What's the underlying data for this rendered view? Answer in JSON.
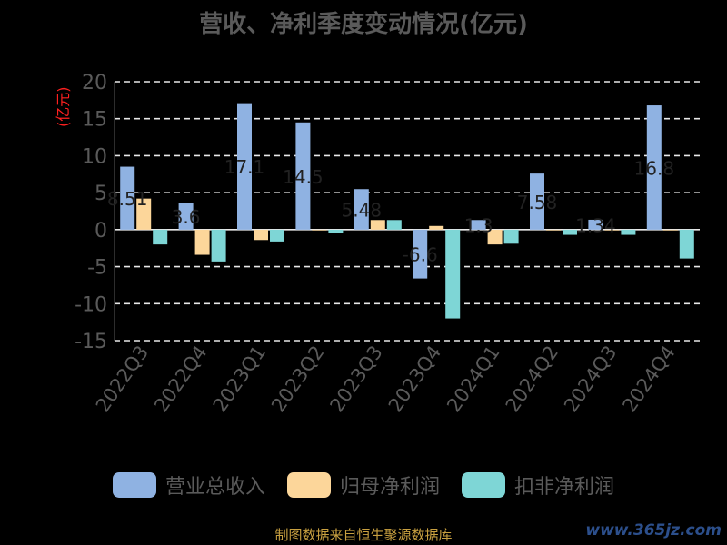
{
  "chart_data": {
    "type": "bar",
    "title": "营收、净利季度变动情况(亿元)",
    "y_unit_label": "(亿元)",
    "categories": [
      "2022Q3",
      "2022Q4",
      "2023Q1",
      "2023Q2",
      "2023Q3",
      "2023Q4",
      "2024Q1",
      "2024Q2",
      "2024Q3",
      "2024Q4"
    ],
    "series": [
      {
        "name": "营业总收入",
        "color": "#8fb2e2",
        "values": [
          8.51,
          3.6,
          17.1,
          14.5,
          5.48,
          -6.6,
          1.3,
          7.58,
          1.34,
          16.8
        ]
      },
      {
        "name": "归母净利润",
        "color": "#fcd69a",
        "values": [
          4.2,
          -3.4,
          -1.4,
          -0.1,
          1.3,
          0.5,
          -2.0,
          -0.1,
          -0.1,
          -0.1
        ]
      },
      {
        "name": "扣非净利润",
        "color": "#7ed6d6",
        "values": [
          -2.0,
          -4.3,
          -1.6,
          -0.5,
          1.3,
          -12.0,
          -1.9,
          -0.7,
          -0.7,
          -3.9
        ]
      }
    ],
    "data_labels": [
      "8.51",
      "3.6",
      "17.1",
      "14.5",
      "5.48",
      "-6.6",
      "1.3",
      "7.58",
      "1.34",
      "16.8"
    ],
    "y_ticks": [
      "20",
      "15",
      "10",
      "5",
      "0",
      "-5",
      "-10",
      "-15"
    ],
    "ylim": [
      -15,
      20
    ],
    "grid": "horizontal dashed",
    "legend_position": "bottom"
  },
  "source_note": "制图数据来自恒生聚源数据库",
  "watermark": "www.365jz.com"
}
